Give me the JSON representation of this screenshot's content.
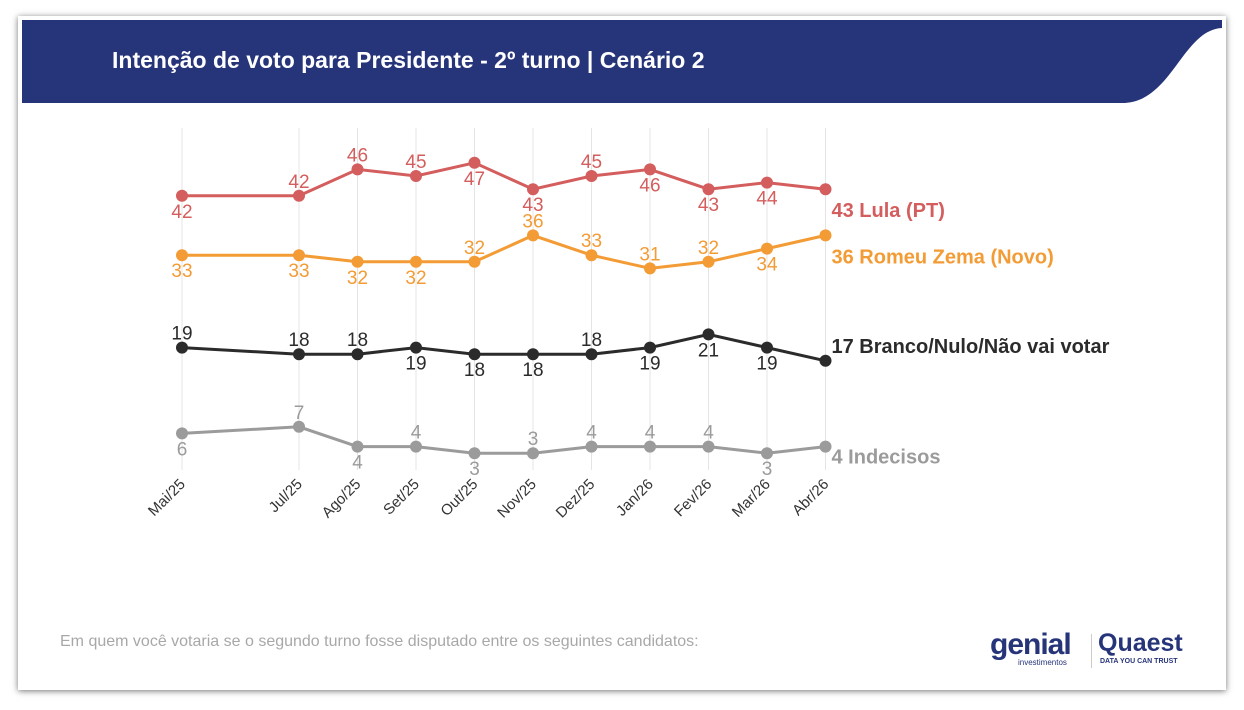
{
  "header": {
    "title": "Intenção de voto para Presidente - 2º turno | Cenário 2"
  },
  "subtitle": "Em quem você votaria se o segundo turno fosse disputado entre os seguintes candidatos:",
  "logos": {
    "genial": "genial",
    "genial_sub": "investimentos",
    "quaest": "Quaest",
    "quaest_sub": "DATA YOU CAN TRUST"
  },
  "colors": {
    "header": "#263479",
    "lula": "#d45d5d",
    "zema": "#f39b34",
    "branco": "#2b2b2b",
    "indecisos": "#9b9b9b"
  },
  "chart_data": {
    "type": "line",
    "title": "Intenção de voto para Presidente - 2º turno | Cenário 2",
    "categories": [
      "Mai/25",
      "Jul/25",
      "Ago/25",
      "Set/25",
      "Out/25",
      "Nov/25",
      "Dez/25",
      "Jan/26",
      "Fev/26",
      "Mar/26",
      "Abr/26"
    ],
    "grid": "vertical",
    "series": [
      {
        "name": "Lula (PT)",
        "end_label": "43 Lula (PT)",
        "color": "#d45d5d",
        "values": [
          42,
          42,
          46,
          45,
          47,
          43,
          45,
          46,
          43,
          44,
          43
        ]
      },
      {
        "name": "Romeu Zema (Novo)",
        "end_label": "36 Romeu Zema (Novo)",
        "color": "#f39b34",
        "values": [
          33,
          33,
          32,
          32,
          32,
          36,
          33,
          31,
          32,
          34,
          36
        ]
      },
      {
        "name": "Branco/Nulo/Não vai votar",
        "end_label": "17 Branco/Nulo/Não vai votar",
        "color": "#2b2b2b",
        "values": [
          19,
          18,
          18,
          19,
          18,
          18,
          18,
          19,
          21,
          19,
          17
        ]
      },
      {
        "name": "Indecisos",
        "end_label": "4 Indecisos",
        "color": "#9b9b9b",
        "values": [
          6,
          7,
          4,
          4,
          3,
          3,
          4,
          4,
          4,
          3,
          4
        ]
      }
    ]
  }
}
